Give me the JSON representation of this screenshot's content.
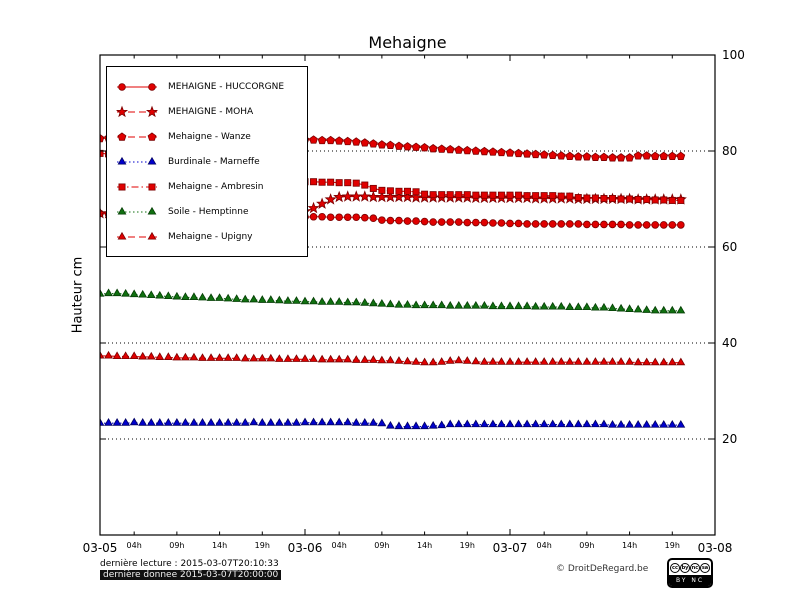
{
  "title": "Mehaigne",
  "ylabel": "Hauteur cm",
  "footer": {
    "line1": "dernière lecture : 2015-03-07T20:10:33",
    "line2": "dernière donnee  2015-03-07T20:00:00",
    "copyright": "© DroitDeRegard.be",
    "license": {
      "icons": [
        "cc",
        "by",
        "nc",
        "sa"
      ],
      "strip": "BY NC SA"
    }
  },
  "chart_data": {
    "type": "line",
    "title": "Mehaigne",
    "xlabel": "",
    "ylabel": "Hauteur cm",
    "ylim": [
      0,
      100
    ],
    "yticks": [
      20,
      40,
      60,
      80,
      100
    ],
    "grid": {
      "horizontal": true,
      "style": "dotted"
    },
    "legend_position": "upper-left",
    "x_unit": "hours since 2015-03-05 00:00",
    "xlim_hours": [
      0,
      72
    ],
    "x_major_ticks": [
      {
        "h": 0,
        "label": "03-05"
      },
      {
        "h": 24,
        "label": "03-06"
      },
      {
        "h": 48,
        "label": "03-07"
      },
      {
        "h": 72,
        "label": "03-08"
      }
    ],
    "x_minor_ticks": [
      {
        "h": 4,
        "label": "04h"
      },
      {
        "h": 9,
        "label": "09h"
      },
      {
        "h": 14,
        "label": "14h"
      },
      {
        "h": 19,
        "label": "19h"
      },
      {
        "h": 28,
        "label": "04h"
      },
      {
        "h": 33,
        "label": "09h"
      },
      {
        "h": 38,
        "label": "14h"
      },
      {
        "h": 43,
        "label": "19h"
      },
      {
        "h": 52,
        "label": "04h"
      },
      {
        "h": 57,
        "label": "09h"
      },
      {
        "h": 62,
        "label": "14h"
      },
      {
        "h": 67,
        "label": "19h"
      }
    ],
    "series": [
      {
        "name": "MEHAIGNE - HUCCORGNE",
        "color": "#e00000",
        "edge": "#7a0000",
        "marker": "circle",
        "line": "solid",
        "x_start_hour": 0,
        "x_step_hours": 1,
        "values": [
          67.0,
          66.9,
          66.9,
          66.8,
          66.8,
          66.7,
          66.7,
          66.6,
          66.6,
          66.5,
          66.5,
          66.5,
          66.4,
          66.4,
          66.4,
          66.3,
          66.3,
          66.3,
          66.3,
          66.3,
          66.3,
          66.3,
          66.3,
          66.3,
          66.2,
          66.3,
          66.3,
          66.2,
          66.2,
          66.2,
          66.2,
          66.1,
          66.0,
          65.6,
          65.5,
          65.5,
          65.4,
          65.4,
          65.3,
          65.2,
          65.2,
          65.2,
          65.2,
          65.1,
          65.1,
          65.1,
          65.0,
          65.0,
          64.9,
          64.9,
          64.8,
          64.8,
          64.8,
          64.8,
          64.8,
          64.8,
          64.8,
          64.7,
          64.7,
          64.7,
          64.7,
          64.7,
          64.6,
          64.6,
          64.6,
          64.6,
          64.6,
          64.6,
          64.6
        ]
      },
      {
        "name": "MEHAIGNE - MOHA",
        "color": "#e00000",
        "edge": "#7a0000",
        "marker": "star",
        "line": "dashed",
        "x_start_hour": 0,
        "x_step_hours": 1,
        "values": [
          67.0,
          67.0,
          67.0,
          67.0,
          67.0,
          67.0,
          67.0,
          67.0,
          67.0,
          67.0,
          67.0,
          67.0,
          67.1,
          67.1,
          67.1,
          67.1,
          67.1,
          67.1,
          67.2,
          67.2,
          67.2,
          67.2,
          67.2,
          67.3,
          67.4,
          68.1,
          69.0,
          69.9,
          70.4,
          70.5,
          70.5,
          70.5,
          70.4,
          70.4,
          70.4,
          70.4,
          70.4,
          70.3,
          70.3,
          70.3,
          70.3,
          70.3,
          70.3,
          70.3,
          70.2,
          70.2,
          70.2,
          70.2,
          70.2,
          70.2,
          70.2,
          70.1,
          70.1,
          70.1,
          70.1,
          70.1,
          70.0,
          70.0,
          70.0,
          70.0,
          70.0,
          70.0,
          70.0,
          69.9,
          69.9,
          69.9,
          69.9,
          69.9,
          69.9
        ]
      },
      {
        "name": "Mehaigne - Wanze",
        "color": "#e00000",
        "edge": "#7a0000",
        "marker": "pentagon",
        "line": "dashed",
        "x_start_hour": 0,
        "x_step_hours": 1,
        "values": [
          82.6,
          82.7,
          82.7,
          82.6,
          82.6,
          82.6,
          82.5,
          82.5,
          82.5,
          82.5,
          82.4,
          82.4,
          82.4,
          82.4,
          82.4,
          82.3,
          82.3,
          82.3,
          82.3,
          82.3,
          82.3,
          82.3,
          82.3,
          82.3,
          82.3,
          82.3,
          82.2,
          82.2,
          82.1,
          82.0,
          81.9,
          81.7,
          81.5,
          81.3,
          81.2,
          81.0,
          80.9,
          80.8,
          80.7,
          80.5,
          80.4,
          80.3,
          80.2,
          80.1,
          80.0,
          79.9,
          79.8,
          79.7,
          79.6,
          79.5,
          79.4,
          79.3,
          79.2,
          79.1,
          79.0,
          78.9,
          78.8,
          78.8,
          78.7,
          78.7,
          78.6,
          78.6,
          78.6,
          79.0,
          79.0,
          78.9,
          78.9,
          78.9,
          78.9
        ]
      },
      {
        "name": "Burdinale - Marneffe",
        "color": "#0000cc",
        "edge": "#000060",
        "marker": "triangle",
        "line": "dotted",
        "x_start_hour": 0,
        "x_step_hours": 1,
        "values": [
          23.3,
          23.3,
          23.3,
          23.3,
          23.4,
          23.3,
          23.3,
          23.3,
          23.3,
          23.3,
          23.3,
          23.3,
          23.3,
          23.3,
          23.3,
          23.3,
          23.3,
          23.3,
          23.4,
          23.3,
          23.3,
          23.3,
          23.3,
          23.3,
          23.4,
          23.4,
          23.4,
          23.4,
          23.4,
          23.4,
          23.3,
          23.3,
          23.3,
          23.2,
          22.7,
          22.6,
          22.6,
          22.6,
          22.6,
          22.7,
          22.8,
          23.0,
          23.0,
          23.0,
          23.0,
          23.0,
          23.0,
          23.0,
          23.0,
          23.0,
          23.0,
          23.0,
          23.0,
          23.0,
          23.0,
          23.0,
          23.0,
          23.0,
          23.0,
          23.0,
          22.9,
          22.9,
          22.9,
          22.9,
          22.9,
          22.9,
          22.9,
          22.9,
          22.9
        ]
      },
      {
        "name": "Mehaigne - Ambresin",
        "color": "#e00000",
        "edge": "#7a0000",
        "marker": "square",
        "line": "dashdot",
        "x_start_hour": 0,
        "x_step_hours": 1,
        "values": [
          79.5,
          79.4,
          79.2,
          79.0,
          78.8,
          78.5,
          78.2,
          77.9,
          77.6,
          77.3,
          77.0,
          76.7,
          76.4,
          76.1,
          75.8,
          75.5,
          75.2,
          74.9,
          74.7,
          74.5,
          74.3,
          74.1,
          73.9,
          73.7,
          73.6,
          73.6,
          73.5,
          73.5,
          73.4,
          73.4,
          73.3,
          72.9,
          72.2,
          71.8,
          71.7,
          71.6,
          71.6,
          71.5,
          71.0,
          70.9,
          70.9,
          70.9,
          70.9,
          70.9,
          70.8,
          70.8,
          70.8,
          70.8,
          70.8,
          70.8,
          70.7,
          70.7,
          70.7,
          70.7,
          70.6,
          70.6,
          70.3,
          70.2,
          70.2,
          70.1,
          70.1,
          70.0,
          70.0,
          69.9,
          69.9,
          69.8,
          69.8,
          69.7,
          69.7
        ]
      },
      {
        "name": "Soile - Hemptinne",
        "color": "#107010",
        "edge": "#053d05",
        "marker": "triangle",
        "line": "dotted",
        "x_start_hour": 0,
        "x_step_hours": 1,
        "values": [
          50.2,
          50.3,
          50.3,
          50.2,
          50.1,
          50.0,
          49.9,
          49.8,
          49.7,
          49.6,
          49.5,
          49.5,
          49.4,
          49.3,
          49.3,
          49.2,
          49.1,
          49.0,
          49.0,
          48.9,
          48.9,
          48.8,
          48.7,
          48.7,
          48.6,
          48.6,
          48.5,
          48.5,
          48.5,
          48.4,
          48.4,
          48.3,
          48.2,
          48.1,
          48.0,
          47.9,
          47.9,
          47.8,
          47.8,
          47.8,
          47.8,
          47.7,
          47.7,
          47.7,
          47.7,
          47.7,
          47.6,
          47.6,
          47.6,
          47.6,
          47.6,
          47.5,
          47.5,
          47.5,
          47.5,
          47.4,
          47.4,
          47.4,
          47.3,
          47.3,
          47.2,
          47.1,
          47.0,
          46.9,
          46.8,
          46.7,
          46.7,
          46.7,
          46.7
        ]
      },
      {
        "name": "Mehaigne - Upigny",
        "color": "#e00000",
        "edge": "#7a0000",
        "marker": "triangle",
        "line": "dashed",
        "x_start_hour": 0,
        "x_step_hours": 1,
        "values": [
          37.3,
          37.3,
          37.2,
          37.2,
          37.2,
          37.1,
          37.1,
          37.0,
          37.0,
          36.9,
          36.9,
          36.9,
          36.8,
          36.8,
          36.8,
          36.8,
          36.8,
          36.7,
          36.7,
          36.7,
          36.7,
          36.6,
          36.6,
          36.6,
          36.6,
          36.6,
          36.5,
          36.5,
          36.5,
          36.5,
          36.4,
          36.4,
          36.4,
          36.3,
          36.3,
          36.2,
          36.1,
          36.0,
          35.9,
          35.9,
          36.0,
          36.2,
          36.3,
          36.2,
          36.1,
          36.0,
          36.0,
          36.0,
          36.0,
          36.0,
          36.0,
          36.0,
          36.0,
          36.0,
          36.0,
          36.0,
          36.0,
          36.0,
          36.0,
          36.0,
          36.0,
          36.0,
          36.0,
          35.9,
          35.9,
          35.9,
          35.9,
          35.9,
          35.9
        ]
      }
    ]
  }
}
